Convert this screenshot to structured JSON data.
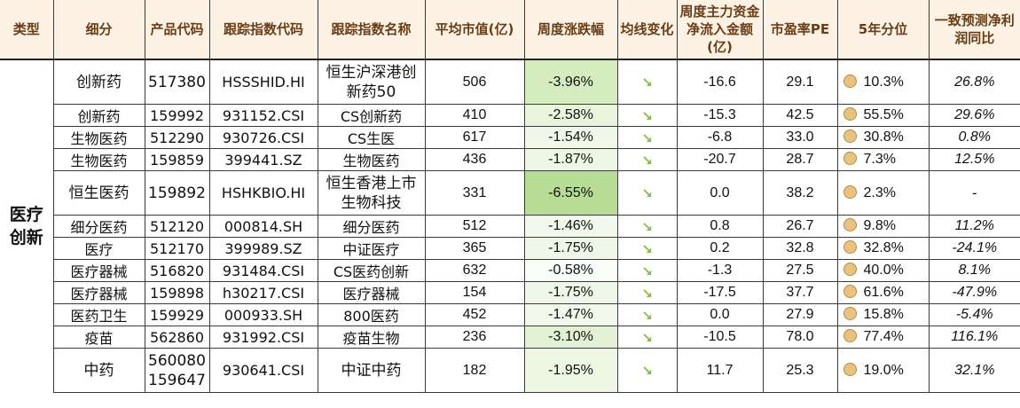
{
  "headers": {
    "type": "类型",
    "subtype": "细分",
    "code": "产品代码",
    "index_code": "跟踪指数代码",
    "index_name": "跟踪指数名称",
    "avg_mktcap": "平均市值(亿)",
    "weekly_change": "周度涨跌幅",
    "ma_change": "均线变化",
    "net_inflow": "周度主力资金净流入金额(亿)",
    "pe": "市盈率PE",
    "pe_pct": "5年分位",
    "profit_yoy": "一致预测净利润同比"
  },
  "category": "医疗创新",
  "colors": {
    "header_bg": "#fdf2e4",
    "header_text": "#6a3d16",
    "arrow": "#7fbf3a",
    "dot": "#e9c37d"
  },
  "rows": [
    {
      "sub": "创新药",
      "code": "517380",
      "index_code": "HSSSHID.HI",
      "index_name": "恒生沪深港创新药50",
      "mktcap": "506",
      "change": "-3.96%",
      "arrow_icon": "down-right-arrow-icon",
      "inflow": "-16.6",
      "pe": "29.1",
      "pct": "10.3%",
      "yoy": "26.8%",
      "tall": true,
      "hl": "#d5ecbf"
    },
    {
      "sub": "创新药",
      "code": "159992",
      "index_code": "931152.CSI",
      "index_name": "CS创新药",
      "mktcap": "410",
      "change": "-2.58%",
      "arrow_icon": "down-right-arrow-icon",
      "inflow": "-15.3",
      "pe": "42.5",
      "pct": "55.5%",
      "yoy": "29.6%",
      "tall": false,
      "hl": "#e8f4dc"
    },
    {
      "sub": "生物医药",
      "code": "512290",
      "index_code": "930726.CSI",
      "index_name": "CS生医",
      "mktcap": "617",
      "change": "-1.54%",
      "arrow_icon": "down-right-arrow-icon",
      "inflow": "-6.8",
      "pe": "33.0",
      "pct": "30.8%",
      "yoy": "0.8%",
      "tall": false,
      "hl": "#f1f8ea"
    },
    {
      "sub": "生物医药",
      "code": "159859",
      "index_code": "399441.SZ",
      "index_name": "生物医药",
      "mktcap": "436",
      "change": "-1.87%",
      "arrow_icon": "down-right-arrow-icon",
      "inflow": "-20.7",
      "pe": "28.7",
      "pct": "7.3%",
      "yoy": "12.5%",
      "tall": false,
      "hl": "#eef7e6"
    },
    {
      "sub": "恒生医药",
      "code": "159892",
      "index_code": "HSHKBIO.HI",
      "index_name": "恒生香港上市生物科技",
      "mktcap": "331",
      "change": "-6.55%",
      "arrow_icon": "down-right-arrow-icon",
      "inflow": "0.0",
      "pe": "38.2",
      "pct": "2.3%",
      "yoy": "-",
      "tall": true,
      "hl": "#b7dc95"
    },
    {
      "sub": "细分医药",
      "code": "512120",
      "index_code": "000814.SH",
      "index_name": "细分医药",
      "mktcap": "512",
      "change": "-1.46%",
      "arrow_icon": "down-right-arrow-icon",
      "inflow": "0.8",
      "pe": "26.7",
      "pct": "9.8%",
      "yoy": "11.2%",
      "tall": false,
      "hl": "#f2f9ec"
    },
    {
      "sub": "医疗",
      "code": "512170",
      "index_code": "399989.SZ",
      "index_name": "中证医疗",
      "mktcap": "365",
      "change": "-1.75%",
      "arrow_icon": "down-right-arrow-icon",
      "inflow": "0.2",
      "pe": "32.8",
      "pct": "32.8%",
      "yoy": "-24.1%",
      "tall": false,
      "hl": "#eff7e8"
    },
    {
      "sub": "医疗器械",
      "code": "516820",
      "index_code": "931484.CSI",
      "index_name": "CS医药创新",
      "mktcap": "632",
      "change": "-0.58%",
      "arrow_icon": "down-right-arrow-icon",
      "inflow": "-1.3",
      "pe": "27.5",
      "pct": "40.0%",
      "yoy": "8.1%",
      "tall": false,
      "hl": "#fbfdf8"
    },
    {
      "sub": "医疗器械",
      "code": "159898",
      "index_code": "h30217.CSI",
      "index_name": "医疗器械",
      "mktcap": "154",
      "change": "-1.75%",
      "arrow_icon": "down-right-arrow-icon",
      "inflow": "-17.5",
      "pe": "37.7",
      "pct": "61.6%",
      "yoy": "-47.9%",
      "tall": false,
      "hl": "#eff7e8"
    },
    {
      "sub": "医药卫生",
      "code": "159929",
      "index_code": "000933.SH",
      "index_name": "800医药",
      "mktcap": "452",
      "change": "-1.47%",
      "arrow_icon": "down-right-arrow-icon",
      "inflow": "0.0",
      "pe": "27.9",
      "pct": "15.8%",
      "yoy": "-5.4%",
      "tall": false,
      "hl": "#f2f9ec"
    },
    {
      "sub": "疫苗",
      "code": "562860",
      "index_code": "931992.CSI",
      "index_name": "疫苗生物",
      "mktcap": "236",
      "change": "-3.10%",
      "arrow_icon": "down-right-arrow-icon",
      "inflow": "-10.5",
      "pe": "78.0",
      "pct": "77.4%",
      "yoy": "116.1%",
      "tall": false,
      "hl": "#e2f1d4"
    },
    {
      "sub": "中药",
      "code": "560080\n159647",
      "index_code": "930641.CSI",
      "index_name": "中证中药",
      "mktcap": "182",
      "change": "-1.95%",
      "arrow_icon": "down-right-arrow-icon",
      "inflow": "11.7",
      "pe": "25.3",
      "pct": "19.0%",
      "yoy": "32.1%",
      "tall": true,
      "hl": "#ecf6e3"
    }
  ]
}
